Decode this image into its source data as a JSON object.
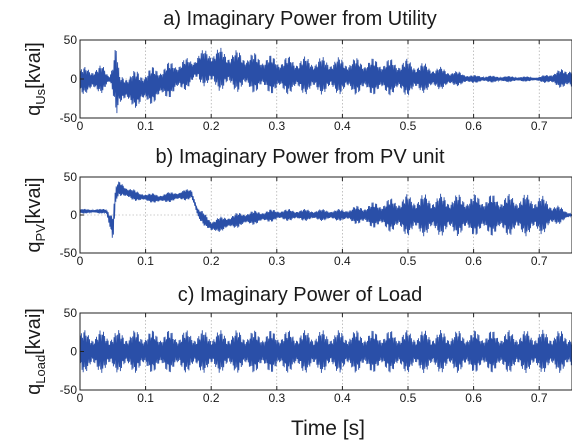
{
  "figure": {
    "xlabel": "Time [s]"
  },
  "chart_data": [
    {
      "type": "line",
      "title": "a) Imaginary Power from Utility",
      "ylabel_main": "q",
      "ylabel_sub": "Us",
      "ylabel_unit": "[kvai]",
      "xlim": [
        0,
        0.75
      ],
      "ylim": [
        -50,
        50
      ],
      "xticks": [
        "0",
        "0.1",
        "0.2",
        "0.3",
        "0.4",
        "0.5",
        "0.6",
        "0.7"
      ],
      "yticks": [
        "50",
        "0",
        "-50"
      ],
      "grid": true,
      "color": "#2a4fa8",
      "envelope": {
        "t": [
          0,
          0.035,
          0.045,
          0.055,
          0.06,
          0.07,
          0.09,
          0.12,
          0.15,
          0.17,
          0.18,
          0.2,
          0.3,
          0.4,
          0.5,
          0.6,
          0.7,
          0.75
        ],
        "upper": [
          15,
          18,
          5,
          50,
          5,
          10,
          12,
          18,
          26,
          28,
          35,
          42,
          30,
          28,
          26,
          5,
          3,
          18
        ],
        "lower": [
          -20,
          -18,
          -5,
          -50,
          -30,
          -35,
          -38,
          -30,
          -20,
          -10,
          -5,
          -15,
          -20,
          -20,
          -22,
          -5,
          -3,
          -16
        ]
      }
    },
    {
      "type": "line",
      "title": "b) Imaginary Power from PV unit",
      "ylabel_main": "q",
      "ylabel_sub": "PV",
      "ylabel_unit": "[kvai]",
      "xlim": [
        0,
        0.75
      ],
      "ylim": [
        -50,
        50
      ],
      "xticks": [
        "0",
        "0.1",
        "0.2",
        "0.3",
        "0.4",
        "0.5",
        "0.6",
        "0.7"
      ],
      "yticks": [
        "50",
        "0",
        "-50"
      ],
      "grid": true,
      "color": "#2a4fa8",
      "envelope": {
        "t": [
          0,
          0.04,
          0.05,
          0.055,
          0.06,
          0.07,
          0.09,
          0.12,
          0.15,
          0.17,
          0.18,
          0.2,
          0.25,
          0.3,
          0.4,
          0.5,
          0.6,
          0.7,
          0.75
        ],
        "upper": [
          8,
          8,
          10,
          40,
          45,
          40,
          30,
          28,
          32,
          35,
          10,
          -5,
          5,
          8,
          8,
          28,
          28,
          28,
          2
        ],
        "lower": [
          2,
          2,
          -45,
          20,
          25,
          20,
          18,
          15,
          18,
          20,
          -5,
          -25,
          -15,
          -8,
          -8,
          -28,
          -28,
          -28,
          -2
        ]
      }
    },
    {
      "type": "line",
      "title": "c) Imaginary Power of Load",
      "ylabel_main": "q",
      "ylabel_sub": "Load",
      "ylabel_unit": "[kvai]",
      "xlim": [
        0,
        0.75
      ],
      "ylim": [
        -50,
        50
      ],
      "xticks": [
        "0",
        "0.1",
        "0.2",
        "0.3",
        "0.4",
        "0.5",
        "0.6",
        "0.7"
      ],
      "yticks": [
        "50",
        "0",
        "-50"
      ],
      "grid": true,
      "color": "#2a4fa8",
      "envelope": {
        "t": [
          0,
          0.75
        ],
        "upper": [
          28,
          28
        ],
        "lower": [
          -28,
          -28
        ]
      }
    }
  ]
}
